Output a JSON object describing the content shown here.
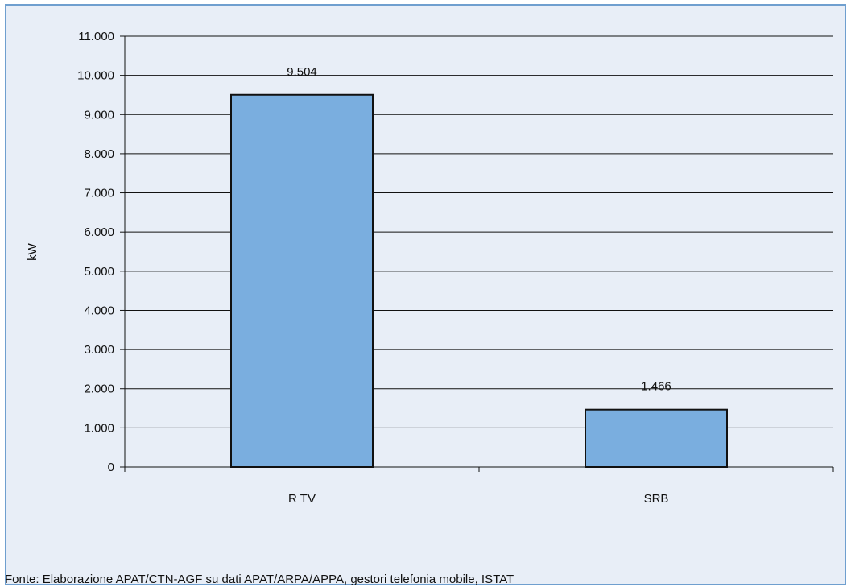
{
  "chart_data": {
    "type": "bar",
    "categories": [
      "R TV",
      "SRB"
    ],
    "values": [
      9504,
      1466
    ],
    "data_labels": [
      "9.504",
      "1.466"
    ],
    "ylabel": "kW",
    "ylim": [
      0,
      11000
    ],
    "ytick_labels": [
      "0",
      "1.000",
      "2.000",
      "3.000",
      "4.000",
      "5.000",
      "6.000",
      "7.000",
      "8.000",
      "9.000",
      "10.000",
      "11.000"
    ],
    "grid": true,
    "bar_color": "#7aaedf",
    "bar_edge_color": "#111111"
  },
  "source": "Fonte: Elaborazione APAT/CTN-AGF su dati APAT/ARPA/APPA, gestori telefonia mobile, ISTAT"
}
